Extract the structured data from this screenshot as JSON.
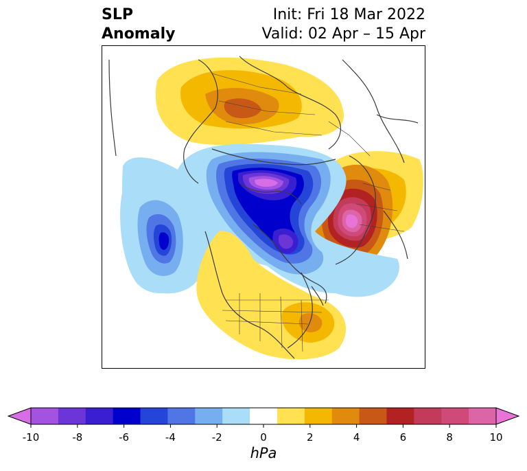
{
  "header": {
    "title_line1": "SLP",
    "title_line2": "Anomaly",
    "init_text": "Init: Fri 18 Mar 2022",
    "valid_text": "Valid: 02 Apr – 15 Apr"
  },
  "colorbar": {
    "units": "hPa",
    "ticks": [
      "-10",
      "-8",
      "-6",
      "-4",
      "-2",
      "0",
      "2",
      "4",
      "6",
      "8",
      "10"
    ],
    "colors": [
      "#d76ee6",
      "#a452e0",
      "#6b35d8",
      "#3a1fd0",
      "#0000cd",
      "#2545d8",
      "#4f76e4",
      "#77aef0",
      "#a9ddf8",
      "#ffffff",
      "#ffe152",
      "#f5b800",
      "#e08a0e",
      "#c85816",
      "#b22222",
      "#c23b5a",
      "#d04a79",
      "#dc65a7",
      "#e874d8"
    ]
  }
}
